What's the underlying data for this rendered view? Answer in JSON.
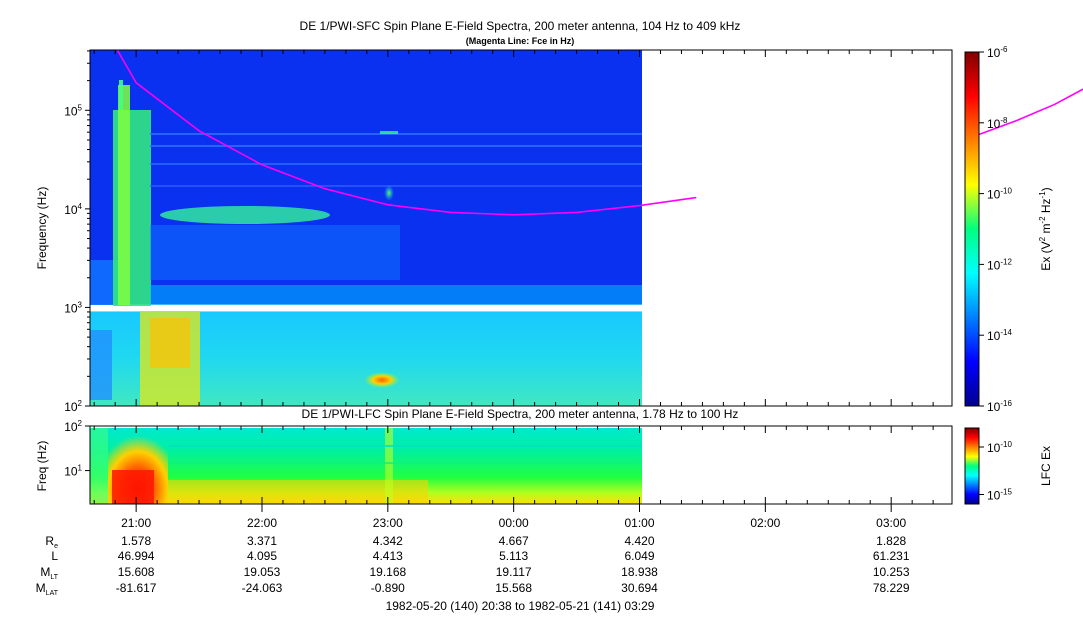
{
  "chart_data": [
    {
      "type": "heatmap",
      "title": "DE 1/PWI-SFC  Spin Plane E-Field Spectra, 200 meter antenna, 104 Hz to 409 kHz",
      "subtitle": "(Magenta Line: Fce in Hz)",
      "ylabel": "Frequency (Hz)",
      "yscale": "log",
      "ylim": [
        100,
        409000
      ],
      "yticks": [
        {
          "value": 100,
          "base": "10",
          "exp": "2"
        },
        {
          "value": 1000,
          "base": "10",
          "exp": "3"
        },
        {
          "value": 10000,
          "base": "10",
          "exp": "4"
        },
        {
          "value": 100000,
          "base": "10",
          "exp": "5"
        }
      ],
      "colorbar": {
        "label_main": "Ex (V",
        "label_sup1": "2",
        "label_mid": " m",
        "label_sup2": "-2",
        "label_mid2": " Hz",
        "label_sup3": "-1",
        "label_end": ")",
        "scale": "log",
        "range": [
          1e-16,
          1e-06
        ],
        "ticks": [
          {
            "value": 1e-06,
            "base": "10",
            "exp": "-6"
          },
          {
            "value": 1e-08,
            "base": "10",
            "exp": "-8"
          },
          {
            "value": 1e-10,
            "base": "10",
            "exp": "-10"
          },
          {
            "value": 1e-12,
            "base": "10",
            "exp": "-12"
          },
          {
            "value": 1e-14,
            "base": "10",
            "exp": "-14"
          },
          {
            "value": 1e-16,
            "base": "10",
            "exp": "-16"
          }
        ]
      },
      "data_end_hours": 4.45,
      "fce_line": {
        "name": "Fce",
        "color": "#ff00ff",
        "segments": [
          [
            [
              -0.15,
              409000
            ],
            [
              0.0,
              190000
            ],
            [
              0.5,
              62000
            ],
            [
              1.0,
              28000
            ],
            [
              1.5,
              16000
            ],
            [
              2.0,
              11000
            ],
            [
              2.5,
              9200
            ],
            [
              3.0,
              8700
            ],
            [
              3.5,
              9200
            ],
            [
              4.0,
              10800
            ],
            [
              4.45,
              13000
            ]
          ],
          [
            [
              6.7,
              57000
            ],
            [
              7.0,
              79000
            ],
            [
              7.3,
              115000
            ],
            [
              7.6,
              185000
            ],
            [
              7.85,
              300000
            ],
            [
              8.0,
              409000
            ]
          ]
        ]
      }
    },
    {
      "type": "heatmap",
      "title": "DE 1/PWI-LFC  Spin Plane E-Field Spectra, 200 meter antenna, 1.78 Hz to 100 Hz",
      "ylabel": "Freq (Hz)",
      "yscale": "log",
      "ylim": [
        1.78,
        100
      ],
      "yticks": [
        {
          "value": 10,
          "base": "10",
          "exp": "1"
        },
        {
          "value": 100,
          "base": "10",
          "exp": "2"
        }
      ],
      "colorbar": {
        "label": "LFC Ex",
        "scale": "log",
        "range": [
          1e-16,
          1e-08
        ],
        "ticks": [
          {
            "value": 1e-10,
            "base": "10",
            "exp": "-10"
          },
          {
            "value": 1e-15,
            "base": "10",
            "exp": "-15"
          }
        ]
      },
      "data_end_hours": 4.45
    }
  ],
  "time_axis": {
    "start_hours": 20.6333,
    "end_hours": 27.4833,
    "tick_labels": [
      {
        "hours": 21,
        "label": "21:00"
      },
      {
        "hours": 22,
        "label": "22:00"
      },
      {
        "hours": 23,
        "label": "23:00"
      },
      {
        "hours": 24,
        "label": "00:00"
      },
      {
        "hours": 25,
        "label": "01:00"
      },
      {
        "hours": 26,
        "label": "02:00"
      },
      {
        "hours": 27,
        "label": "03:00"
      }
    ]
  },
  "ephemeris": {
    "rows": [
      {
        "label": "R",
        "sub": "e",
        "values": [
          "1.578",
          "3.371",
          "4.342",
          "4.667",
          "4.420",
          "",
          "1.828"
        ]
      },
      {
        "label": "L",
        "sub": "",
        "values": [
          "46.994",
          "4.095",
          "4.413",
          "5.113",
          "6.049",
          "",
          "61.231"
        ]
      },
      {
        "label": "M",
        "sub": "LT",
        "values": [
          "15.608",
          "19.053",
          "19.168",
          "19.117",
          "18.938",
          "",
          "10.253"
        ]
      },
      {
        "label": "M",
        "sub": "LAT",
        "values": [
          "-81.617",
          "-24.063",
          "-0.890",
          "15.568",
          "30.694",
          "",
          "78.229"
        ]
      }
    ]
  },
  "footer": {
    "time_range": "1982-05-20 (140) 20:38 to 1982-05-21 (141) 03:29"
  }
}
